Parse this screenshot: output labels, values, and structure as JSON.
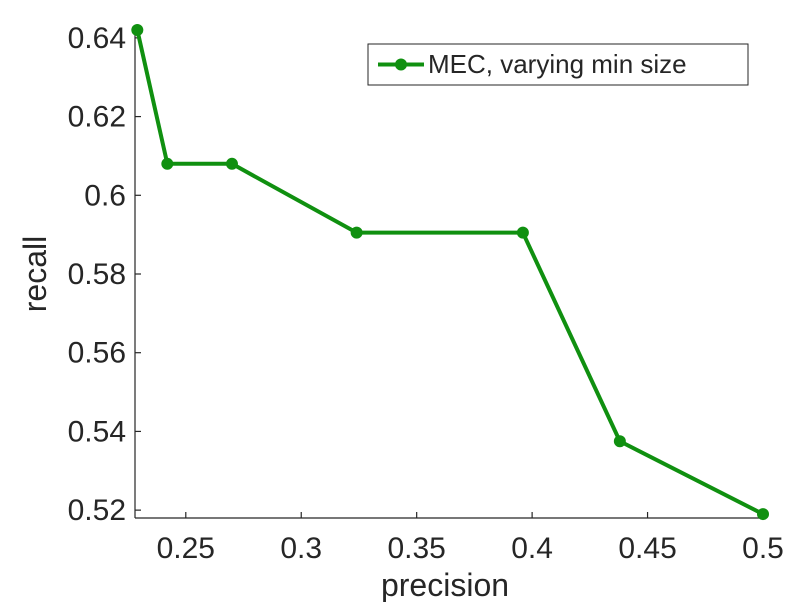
{
  "chart_data": {
    "type": "line",
    "title": "",
    "xlabel": "precision",
    "ylabel": "recall",
    "xlim": [
      0.228,
      0.5
    ],
    "ylim": [
      0.518,
      0.642
    ],
    "grid": false,
    "legend_position": "top-right",
    "x_ticks": [
      {
        "value": 0.25,
        "label": "0.25"
      },
      {
        "value": 0.3,
        "label": "0.3"
      },
      {
        "value": 0.35,
        "label": "0.35"
      },
      {
        "value": 0.4,
        "label": "0.4"
      },
      {
        "value": 0.45,
        "label": "0.45"
      },
      {
        "value": 0.5,
        "label": "0.5"
      }
    ],
    "y_ticks": [
      {
        "value": 0.52,
        "label": "0.52"
      },
      {
        "value": 0.54,
        "label": "0.54"
      },
      {
        "value": 0.56,
        "label": "0.56"
      },
      {
        "value": 0.58,
        "label": "0.58"
      },
      {
        "value": 0.6,
        "label": "0.6"
      },
      {
        "value": 0.62,
        "label": "0.62"
      },
      {
        "value": 0.64,
        "label": "0.64"
      }
    ],
    "series": [
      {
        "name": "MEC, varying min size",
        "color": "#109010",
        "marker": "circle",
        "x": [
          0.229,
          0.242,
          0.27,
          0.324,
          0.396,
          0.438,
          0.5
        ],
        "y": [
          0.642,
          0.608,
          0.608,
          0.5905,
          0.5905,
          0.5375,
          0.519
        ]
      }
    ]
  }
}
